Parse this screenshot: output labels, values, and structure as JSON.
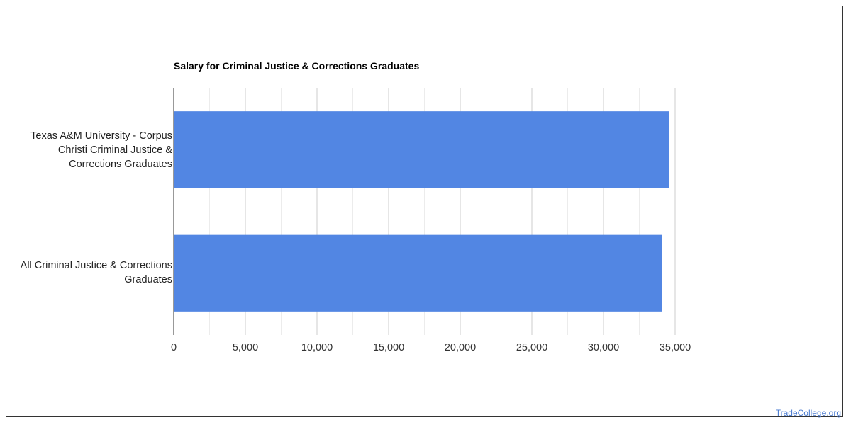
{
  "chart_data": {
    "type": "bar",
    "orientation": "horizontal",
    "title": "Salary for Criminal Justice & Corrections Graduates",
    "xlabel": "",
    "ylabel": "",
    "categories": [
      "Texas A&M University - Corpus Christi Criminal Justice & Corrections Graduates",
      "All Criminal Justice & Corrections Graduates"
    ],
    "category_lines": [
      [
        "Texas A&M University - Corpus",
        "Christi Criminal Justice &",
        "Corrections Graduates"
      ],
      [
        "All Criminal Justice & Corrections",
        "Graduates"
      ]
    ],
    "values": [
      34600,
      34100
    ],
    "xlim": [
      0,
      35000
    ],
    "ticks": [
      "0",
      "5,000",
      "10,000",
      "15,000",
      "20,000",
      "25,000",
      "30,000",
      "35,000"
    ],
    "tick_values": [
      0,
      5000,
      10000,
      15000,
      20000,
      25000,
      30000,
      35000
    ],
    "grid": true,
    "legend": "none",
    "bar_color": "#5286e3"
  },
  "watermark": {
    "text": "TradeCollege.org",
    "color": "#4a7bd0"
  }
}
